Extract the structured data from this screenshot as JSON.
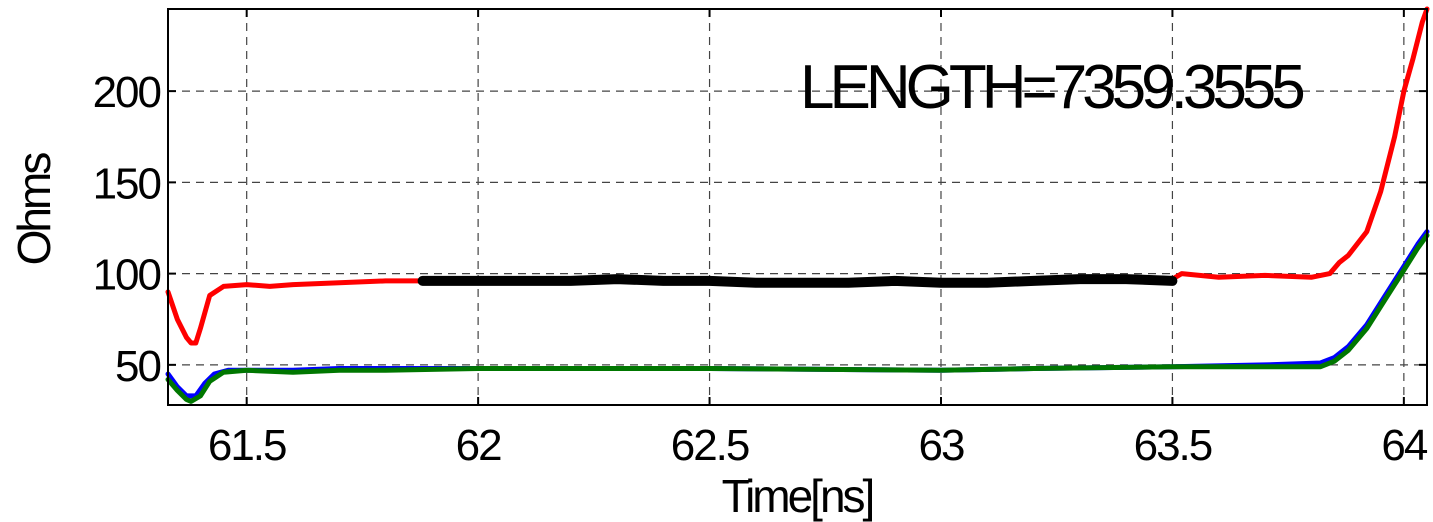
{
  "chart_data": {
    "type": "line",
    "title": "",
    "xlabel": "Time[ns]",
    "ylabel": "Ohms",
    "xlim": [
      61.33,
      64.05
    ],
    "ylim": [
      28,
      245
    ],
    "x_ticks": [
      61.5,
      62,
      62.5,
      63,
      63.5,
      64
    ],
    "x_tick_labels": [
      "61.5",
      "62",
      "62.5",
      "63",
      "63.5",
      "64"
    ],
    "y_ticks": [
      50,
      100,
      150,
      200
    ],
    "y_tick_labels": [
      "50",
      "100",
      "150",
      "200"
    ],
    "grid": true,
    "annotation": "LENGTH=7359.3555",
    "series": [
      {
        "color": "#ff0000",
        "x": [
          61.33,
          61.35,
          61.37,
          61.38,
          61.39,
          61.4,
          61.42,
          61.45,
          61.5,
          61.55,
          61.6,
          61.7,
          61.8,
          61.88,
          62.0,
          62.5,
          63.0,
          63.5,
          63.52,
          63.6,
          63.7,
          63.8,
          63.84,
          63.86,
          63.88,
          63.92,
          63.95,
          63.98,
          64.0,
          64.02,
          64.04,
          64.05
        ],
        "y": [
          90,
          75,
          65,
          62,
          62,
          70,
          88,
          93,
          94,
          93,
          94,
          95,
          96,
          96,
          96,
          96,
          95,
          97,
          100,
          98,
          99,
          98,
          100,
          106,
          110,
          123,
          145,
          175,
          200,
          218,
          238,
          245
        ]
      },
      {
        "color": "#0000ff",
        "x": [
          61.33,
          61.35,
          61.37,
          61.39,
          61.41,
          61.43,
          61.46,
          61.5,
          61.6,
          61.7,
          61.8,
          62.0,
          62.5,
          63.0,
          63.2,
          63.5,
          63.7,
          63.82,
          63.85,
          63.88,
          63.92,
          63.96,
          64.0,
          64.03,
          64.05
        ],
        "y": [
          45,
          38,
          33,
          33,
          40,
          45,
          47,
          47,
          47,
          48,
          48,
          48,
          48,
          47,
          48,
          49,
          50,
          51,
          54,
          60,
          72,
          88,
          104,
          116,
          123
        ]
      },
      {
        "color": "#007700",
        "x": [
          61.33,
          61.35,
          61.37,
          61.38,
          61.4,
          61.42,
          61.45,
          61.5,
          61.6,
          61.7,
          61.8,
          62.0,
          62.5,
          63.0,
          63.2,
          63.5,
          63.7,
          63.82,
          63.85,
          63.88,
          63.92,
          63.96,
          64.0,
          64.03,
          64.05
        ],
        "y": [
          42,
          36,
          31,
          30,
          33,
          41,
          46,
          47,
          46,
          47,
          47,
          48,
          48,
          47,
          48,
          49,
          49,
          49,
          52,
          58,
          70,
          86,
          102,
          114,
          121
        ]
      },
      {
        "color": "#000000",
        "x": [
          61.88,
          62.0,
          62.1,
          62.2,
          62.3,
          62.4,
          62.5,
          62.6,
          62.7,
          62.8,
          62.9,
          63.0,
          63.1,
          63.2,
          63.3,
          63.4,
          63.5
        ],
        "y": [
          96,
          96,
          96,
          96,
          97,
          96,
          96,
          95,
          95,
          95,
          96,
          95,
          95,
          96,
          97,
          97,
          96
        ]
      }
    ]
  }
}
